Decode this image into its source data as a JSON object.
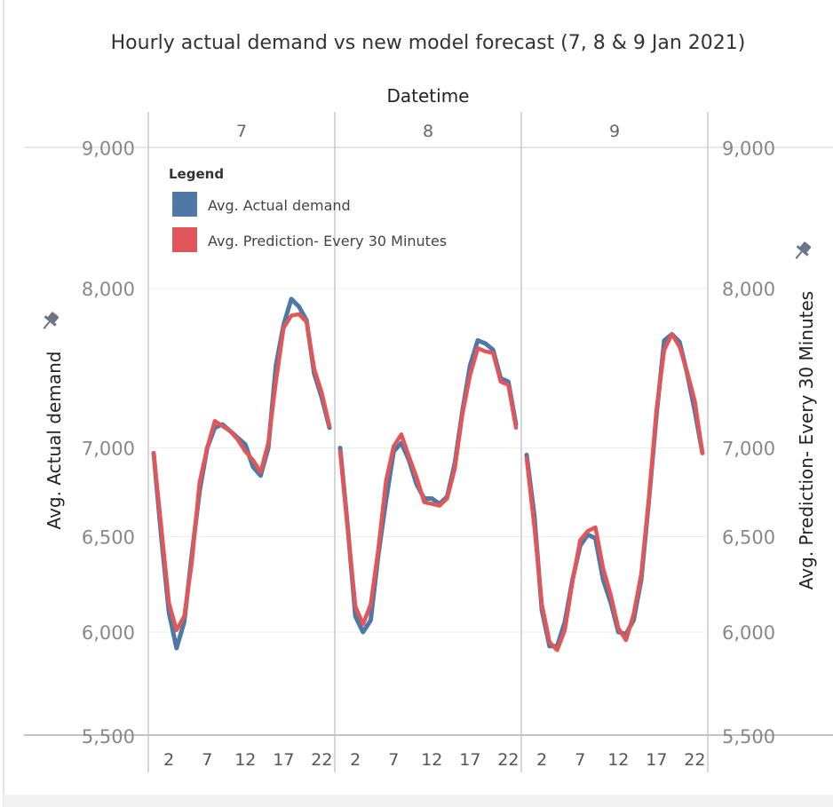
{
  "chart_data": {
    "type": "line",
    "title": "Hourly actual demand vs new model forecast (7, 8 & 9 Jan 2021)",
    "column_header": "Datetime",
    "panels": [
      "7",
      "8",
      "9"
    ],
    "x_tick_labels": [
      "2",
      "7",
      "12",
      "17",
      "22"
    ],
    "hours": [
      0,
      1,
      2,
      3,
      4,
      5,
      6,
      7,
      8,
      9,
      10,
      11,
      12,
      13,
      14,
      15,
      16,
      17,
      18,
      19,
      20,
      21,
      22,
      23
    ],
    "ylabel_left": "Avg. Actual demand",
    "ylabel_right": "Avg. Prediction- Every 30 Minutes",
    "y_ticks": [
      5500,
      6000,
      6500,
      7000,
      8000,
      9000
    ],
    "y_tick_labels": [
      "5,500",
      "6,000",
      "6,500",
      "7,000",
      "8,000",
      "9,000"
    ],
    "y_scale": "log",
    "ylim": [
      5500,
      9000
    ],
    "grid": true,
    "legend": {
      "title": "Legend",
      "position": "top-left",
      "entries": [
        {
          "label": "Avg. Actual demand",
          "color": "#4e79a7"
        },
        {
          "label": "Avg. Prediction- Every 30 Minutes",
          "color": "#e15759"
        }
      ]
    },
    "series": [
      {
        "name": "Avg. Actual demand",
        "color": "#4e79a7",
        "values_by_day": [
          [
            6970,
            6500,
            6100,
            5920,
            6050,
            6400,
            6750,
            7000,
            7120,
            7140,
            7100,
            7060,
            7020,
            6890,
            6840,
            7000,
            7500,
            7760,
            7930,
            7880,
            7790,
            7450,
            7300,
            7120
          ],
          [
            7000,
            6550,
            6080,
            6000,
            6060,
            6400,
            6700,
            6980,
            7030,
            6930,
            6790,
            6710,
            6710,
            6680,
            6720,
            6910,
            7220,
            7500,
            7660,
            7640,
            7600,
            7420,
            7400,
            7140
          ],
          [
            6960,
            6620,
            6110,
            5930,
            5930,
            6050,
            6270,
            6450,
            6510,
            6490,
            6270,
            6150,
            6000,
            5990,
            6060,
            6270,
            6700,
            7200,
            7660,
            7700,
            7650,
            7450,
            7220,
            6970
          ]
        ]
      },
      {
        "name": "Avg. Prediction- Every 30 Minutes",
        "color": "#e15759",
        "values_by_day": [
          [
            6970,
            6550,
            6150,
            6010,
            6080,
            6360,
            6800,
            7000,
            7160,
            7130,
            7100,
            7050,
            6980,
            6930,
            6860,
            7030,
            7400,
            7740,
            7820,
            7830,
            7780,
            7480,
            7330,
            7130
          ],
          [
            6980,
            6540,
            6130,
            6040,
            6140,
            6430,
            6810,
            7010,
            7080,
            6950,
            6830,
            6690,
            6680,
            6670,
            6710,
            6880,
            7200,
            7440,
            7610,
            7590,
            7580,
            7400,
            7380,
            7120
          ],
          [
            6940,
            6560,
            6140,
            5950,
            5910,
            6010,
            6260,
            6480,
            6530,
            6550,
            6330,
            6190,
            6020,
            5960,
            6090,
            6300,
            6710,
            7230,
            7600,
            7700,
            7620,
            7460,
            7280,
            6970
          ]
        ]
      }
    ]
  }
}
